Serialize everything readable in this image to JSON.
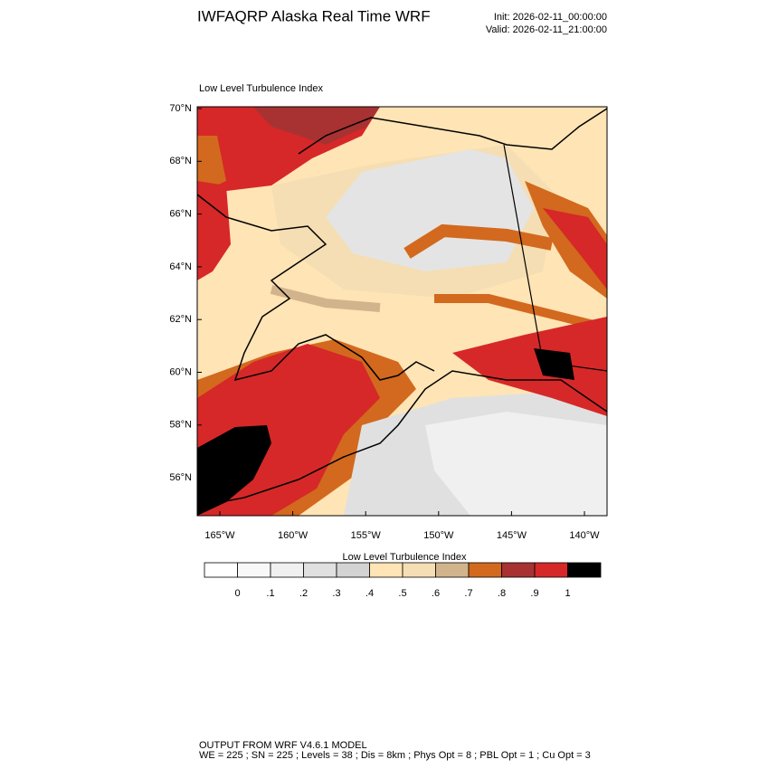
{
  "header": {
    "title": "IWFAQRP Alaska Real Time WRF",
    "init": "Init: 2026-02-11_00:00:00",
    "valid": "Valid: 2026-02-11_21:00:00"
  },
  "map": {
    "title": "Low Level Turbulence Index",
    "lat_labels": [
      "70°N",
      "68°N",
      "66°N",
      "64°N",
      "62°N",
      "60°N",
      "58°N",
      "56°N"
    ],
    "lon_labels": [
      "165°W",
      "160°W",
      "155°W",
      "150°W",
      "145°W",
      "140°W"
    ]
  },
  "colorbar": {
    "title": "Low Level Turbulence Index",
    "colors": [
      "#ffffff",
      "#f8f8f8",
      "#f0f0f0",
      "#e0e0e0",
      "#d3d3d3",
      "#ffe4b5",
      "#f5deb3",
      "#d2b48c",
      "#d2691e",
      "#a83232",
      "#d62828",
      "#000000"
    ],
    "labels": [
      "0",
      ".1",
      ".2",
      ".3",
      ".4",
      ".5",
      ".6",
      ".7",
      ".8",
      ".9",
      "1"
    ]
  },
  "footer": {
    "line1": "OUTPUT FROM WRF V4.6.1 MODEL",
    "line2": "WE = 225 ; SN = 225 ; Levels = 38 ; Dis = 8km ; Phys Opt = 8 ; PBL Opt = 1 ; Cu Opt = 3"
  }
}
